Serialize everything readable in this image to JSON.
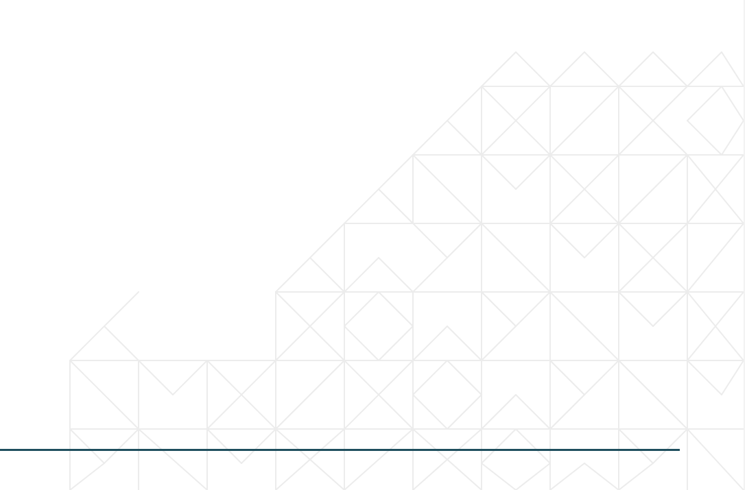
{
  "slide": {
    "background_color": "#ffffff",
    "accent_color": "#1f4f5e",
    "pattern_color": "#ececec",
    "pattern_motif": "geometric-triangle-grid",
    "text_content": []
  }
}
